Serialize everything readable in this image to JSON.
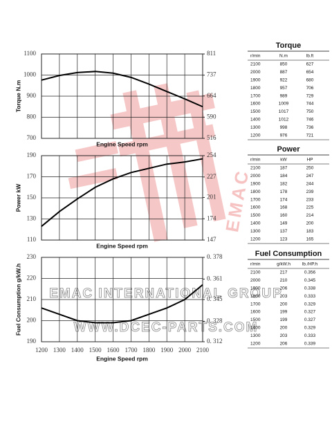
{
  "chart_data": [
    {
      "type": "line",
      "ylabel": "Torque  N.m",
      "xlabel": "Engine Speed rpm",
      "x": [
        1200,
        1300,
        1400,
        1500,
        1600,
        1700,
        1800,
        1900,
        2000,
        2100
      ],
      "series": [
        {
          "color": "#000000",
          "values": [
            976,
            998,
            1012,
            1017,
            1009,
            989,
            957,
            922,
            887,
            850
          ]
        }
      ],
      "xlim": [
        1200,
        2100
      ],
      "xticks": [
        1200,
        1300,
        1400,
        1500,
        1600,
        1700,
        1800,
        1900,
        2000,
        2100
      ],
      "show_xtick_labels": false,
      "ylim": [
        700,
        1100
      ],
      "yticks": [
        700,
        800,
        900,
        1000,
        1100
      ],
      "y2lim": [
        516,
        811
      ],
      "y2ticks": [
        516,
        590,
        664,
        737,
        811
      ],
      "grid": true
    },
    {
      "type": "line",
      "ylabel": "Power  kW",
      "xlabel": "Engine Speed rpm",
      "x": [
        1200,
        1300,
        1400,
        1500,
        1600,
        1700,
        1800,
        1900,
        2000,
        2100
      ],
      "series": [
        {
          "color": "#000000",
          "values": [
            123,
            137,
            149,
            160,
            168,
            174,
            178,
            182,
            184,
            187
          ]
        }
      ],
      "xlim": [
        1200,
        2100
      ],
      "xticks": [
        1200,
        1300,
        1400,
        1500,
        1600,
        1700,
        1800,
        1900,
        2000,
        2100
      ],
      "show_xtick_labels": false,
      "ylim": [
        110,
        190
      ],
      "yticks": [
        110,
        130,
        150,
        170,
        190
      ],
      "y2lim": [
        147,
        254
      ],
      "y2ticks": [
        147,
        174,
        201,
        227,
        254
      ],
      "grid": true
    },
    {
      "type": "line",
      "ylabel": "Fuel Consumption  g/kW.h",
      "xlabel": "Engine Speed rpm",
      "x": [
        1200,
        1300,
        1400,
        1500,
        1600,
        1700,
        1800,
        1900,
        2000,
        2100
      ],
      "series": [
        {
          "color": "#000000",
          "values": [
            206,
            203,
            200,
            199,
            199,
            200,
            203,
            206,
            210,
            217
          ]
        }
      ],
      "xlim": [
        1200,
        2100
      ],
      "xticks": [
        1200,
        1300,
        1400,
        1500,
        1600,
        1700,
        1800,
        1900,
        2000,
        2100
      ],
      "show_xtick_labels": true,
      "ylim": [
        190,
        230
      ],
      "yticks": [
        190,
        200,
        210,
        220,
        230
      ],
      "y2lim": [
        0.312,
        0.378
      ],
      "y2ticks": [
        {
          "value": 0.312,
          "label": "0. 312"
        },
        {
          "value": 0.328,
          "label": "0. 328"
        },
        {
          "value": 0.345,
          "label": "0. 345"
        },
        {
          "value": 0.361,
          "label": "0. 361"
        },
        {
          "value": 0.378,
          "label": "0. 378"
        }
      ],
      "grid": true
    }
  ],
  "tables": [
    {
      "title": "Torque",
      "header": [
        "r/min",
        "N.m",
        "lb.ft"
      ],
      "rows": [
        [
          2100,
          850,
          627
        ],
        [
          2000,
          887,
          654
        ],
        [
          1900,
          922,
          680
        ],
        [
          1800,
          957,
          706
        ],
        [
          1700,
          989,
          729
        ],
        [
          1600,
          1009,
          744
        ],
        [
          1500,
          1017,
          750
        ],
        [
          1400,
          1012,
          746
        ],
        [
          1300,
          998,
          736
        ],
        [
          1200,
          976,
          721
        ]
      ]
    },
    {
      "title": "Power",
      "header": [
        "r/min",
        "kW",
        "HP"
      ],
      "rows": [
        [
          2100,
          187,
          250
        ],
        [
          2000,
          184,
          247
        ],
        [
          1900,
          182,
          244
        ],
        [
          1800,
          178,
          239
        ],
        [
          1700,
          174,
          233
        ],
        [
          1600,
          168,
          225
        ],
        [
          1500,
          160,
          214
        ],
        [
          1400,
          149,
          200
        ],
        [
          1300,
          137,
          183
        ],
        [
          1200,
          123,
          165
        ]
      ]
    },
    {
      "title": "Fuel Consumption",
      "header": [
        "r/min",
        "g/kW.h",
        "lb./HP.h"
      ],
      "rows": [
        [
          2100,
          217,
          0.356
        ],
        [
          2000,
          210,
          0.345
        ],
        [
          1900,
          206,
          0.338
        ],
        [
          1800,
          203,
          0.333
        ],
        [
          1700,
          200,
          0.329
        ],
        [
          1600,
          199,
          0.327
        ],
        [
          1500,
          199,
          0.327
        ],
        [
          1400,
          200,
          0.329
        ],
        [
          1300,
          203,
          0.333
        ],
        [
          1200,
          206,
          0.339
        ]
      ]
    }
  ],
  "watermark": {
    "line1": "EMAC INTERNATIONAL GROUP",
    "line2": "WWW.DCEC-PARTS.COM",
    "vertical": "EMAC"
  }
}
